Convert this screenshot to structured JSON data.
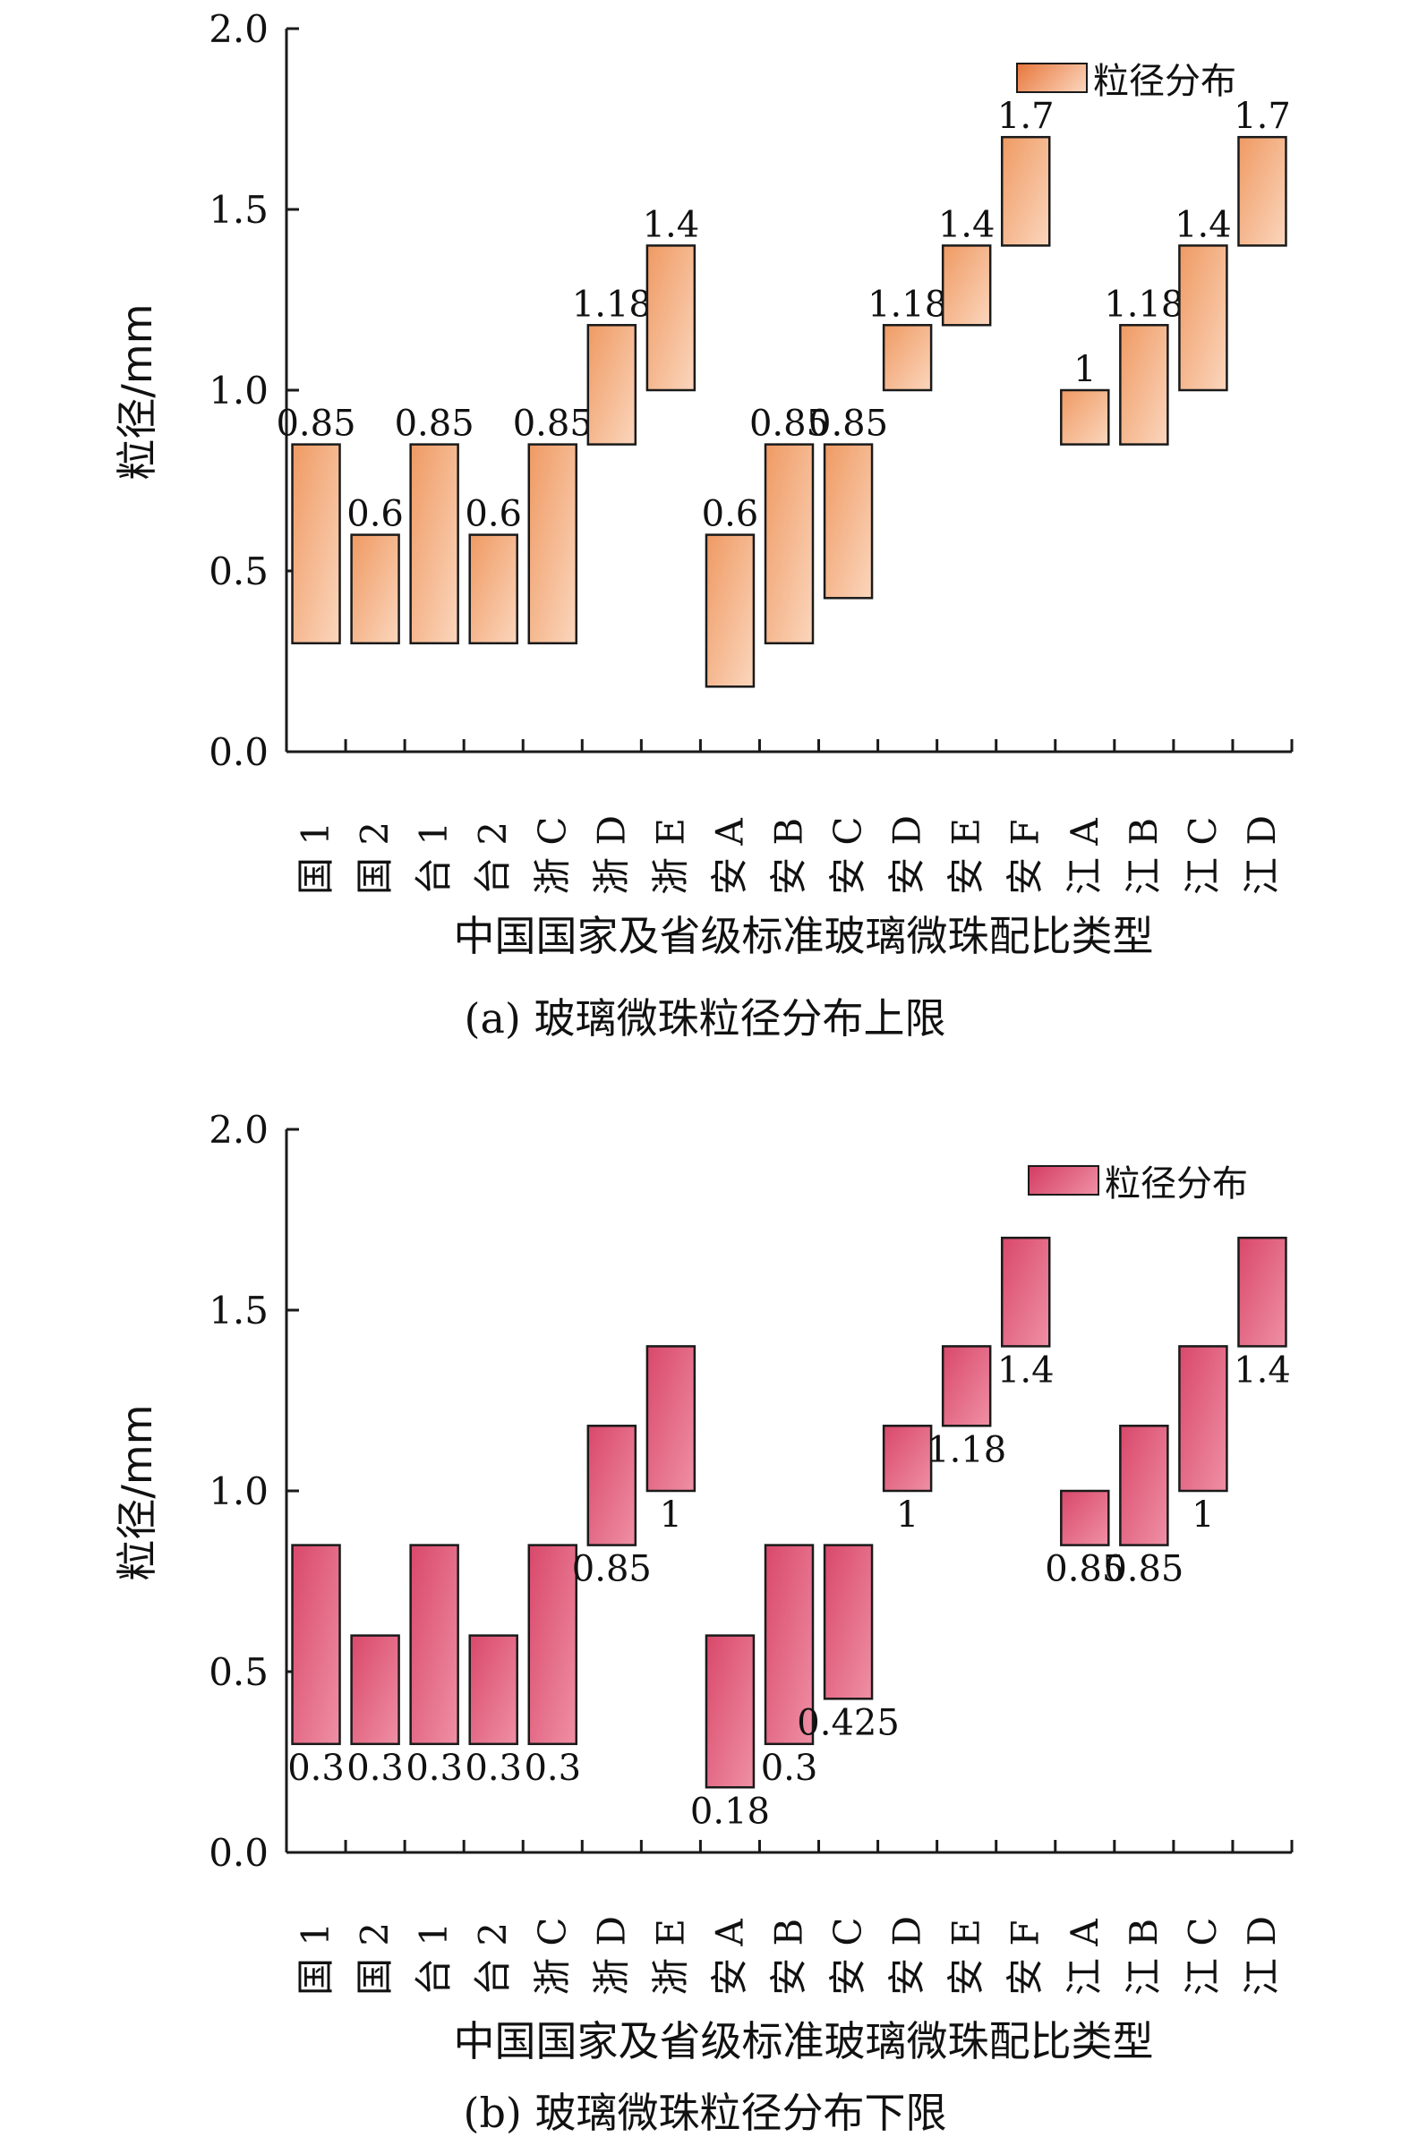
{
  "chart_data": [
    {
      "type": "floating-bar",
      "xlabel": "中国国家及省级标准玻璃微珠配比类型",
      "ylabel": "粒径/mm",
      "caption": "(a) 玻璃微珠粒径分布上限",
      "legend": "粒径分布",
      "label_position": "top",
      "ylim": [
        0,
        2.0
      ],
      "yticks": [
        "0.0",
        "0.5",
        "1.0",
        "1.5",
        "2.0"
      ],
      "categories": [
        "国 1",
        "国 2",
        "台 1",
        "台 2",
        "浙 C",
        "浙 D",
        "浙 E",
        "安 A",
        "安 B",
        "安 C",
        "安 D",
        "安 E",
        "安 F",
        "江 A",
        "江 B",
        "江 C",
        "江 D"
      ],
      "low": [
        0.3,
        0.3,
        0.3,
        0.3,
        0.3,
        0.85,
        1.0,
        0.18,
        0.3,
        0.425,
        1.0,
        1.18,
        1.4,
        0.85,
        0.85,
        1.0,
        1.4
      ],
      "high": [
        0.85,
        0.6,
        0.85,
        0.6,
        0.85,
        1.18,
        1.4,
        0.6,
        0.85,
        0.85,
        1.18,
        1.4,
        1.7,
        1.0,
        1.18,
        1.4,
        1.7
      ],
      "labels": [
        "0.85",
        "0.6",
        "0.85",
        "0.6",
        "0.85",
        "1.18",
        "1.4",
        "0.6",
        "0.85",
        "0.85",
        "1.18",
        "1.4",
        "1.7",
        "1",
        "1.18",
        "1.4",
        "1.7"
      ],
      "color": "#ef9a63",
      "color_light": "#fbd6bd"
    },
    {
      "type": "floating-bar",
      "xlabel": "中国国家及省级标准玻璃微珠配比类型",
      "ylabel": "粒径/mm",
      "caption": "(b) 玻璃微珠粒径分布下限",
      "legend": "粒径分布",
      "label_position": "bottom",
      "ylim": [
        0,
        2.0
      ],
      "yticks": [
        "0.0",
        "0.5",
        "1.0",
        "1.5",
        "2.0"
      ],
      "categories": [
        "国 1",
        "国 2",
        "台 1",
        "台 2",
        "浙 C",
        "浙 D",
        "浙 E",
        "安 A",
        "安 B",
        "安 C",
        "安 D",
        "安 E",
        "安 F",
        "江 A",
        "江 B",
        "江 C",
        "江 D"
      ],
      "low": [
        0.3,
        0.3,
        0.3,
        0.3,
        0.3,
        0.85,
        1.0,
        0.18,
        0.3,
        0.425,
        1.0,
        1.18,
        1.4,
        0.85,
        0.85,
        1.0,
        1.4
      ],
      "high": [
        0.85,
        0.6,
        0.85,
        0.6,
        0.85,
        1.18,
        1.4,
        0.6,
        0.85,
        0.85,
        1.18,
        1.4,
        1.7,
        1.0,
        1.18,
        1.4,
        1.7
      ],
      "labels": [
        "0.3",
        "0.3",
        "0.3",
        "0.3",
        "0.3",
        "0.85",
        "1",
        "0.18",
        "0.3",
        "0.425",
        "1",
        "1.18",
        "1.4",
        "0.85",
        "0.85",
        "1",
        "1.4"
      ],
      "color": "#d9486a",
      "color_light": "#ef90a5"
    }
  ]
}
